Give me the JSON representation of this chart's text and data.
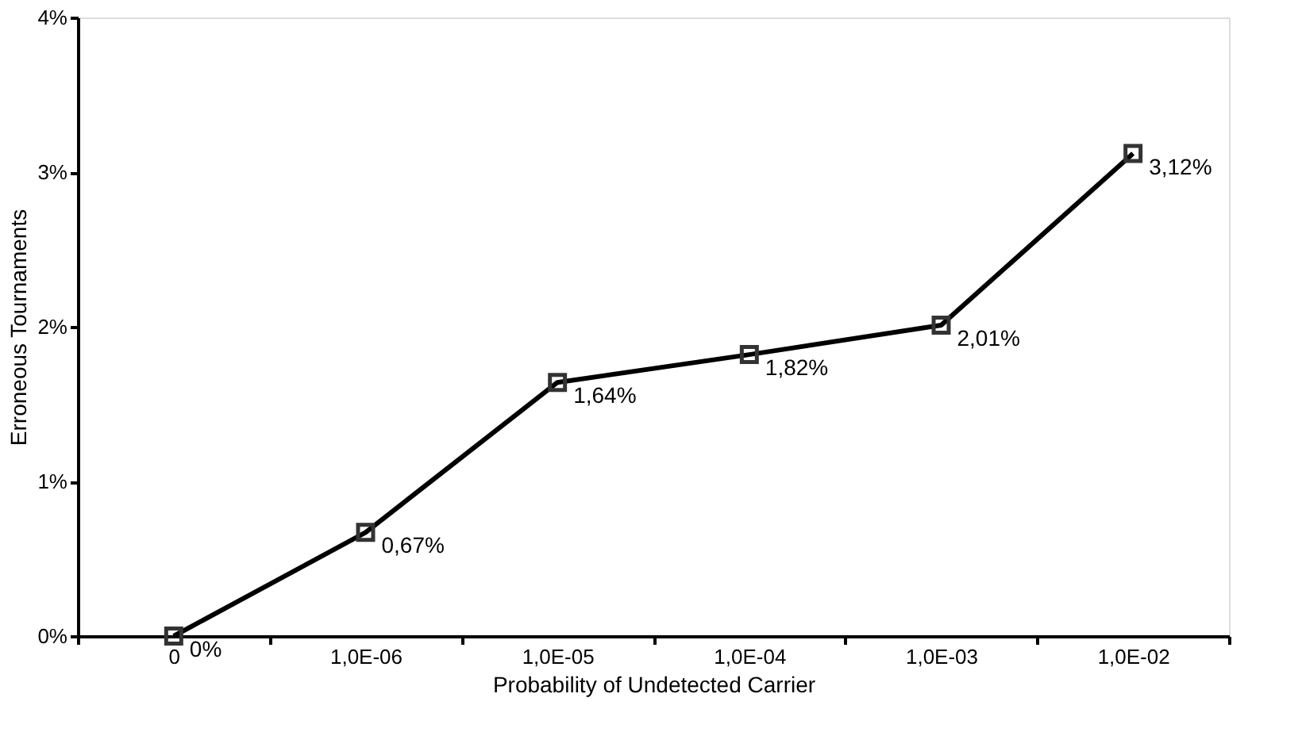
{
  "chart_data": {
    "type": "line",
    "xlabel": "Probability of Undetected Carrier",
    "ylabel": "Erroneous Tournaments",
    "categories": [
      "0",
      "1,0E-06",
      "1,0E-05",
      "1,0E-04",
      "1,0E-03",
      "1,0E-02"
    ],
    "series": [
      {
        "color": "#000000",
        "values": [
          0,
          0.67,
          1.64,
          1.82,
          2.01,
          3.12
        ],
        "value_labels": [
          "0%",
          "0,67%",
          "1,64%",
          "1,82%",
          "2,01%",
          "3,12%"
        ]
      }
    ],
    "ylim": [
      0,
      4
    ],
    "yticks": [
      {
        "value": 0,
        "label": "0%"
      },
      {
        "value": 1,
        "label": "1%"
      },
      {
        "value": 2,
        "label": "2%"
      },
      {
        "value": 3,
        "label": "3%"
      },
      {
        "value": 4,
        "label": "4%"
      }
    ],
    "marker": "square",
    "line_style": "solid",
    "grid": false
  }
}
